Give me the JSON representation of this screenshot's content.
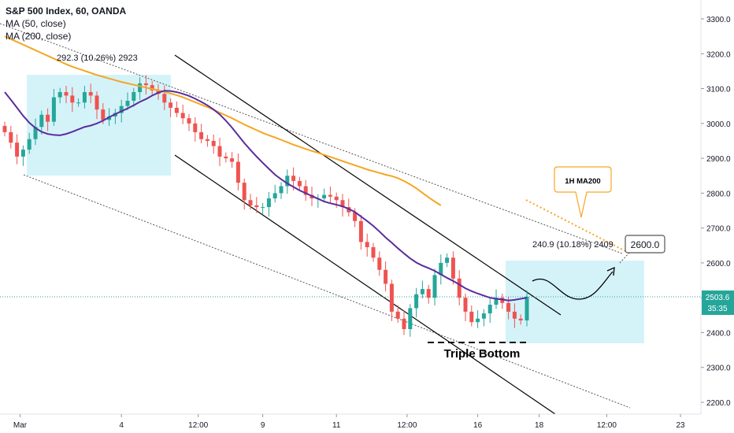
{
  "legend": {
    "symbol": "S&P 500 Index, 60, OANDA",
    "ma50": "MA (50, close)",
    "ma200": "MA (200, close)"
  },
  "colors": {
    "up": "#26a69a",
    "down": "#ef5350",
    "ma50": "#5b2c9e",
    "ma200": "#f5a623",
    "box": "#b7ebf5",
    "price_line": "#26a69a",
    "channel": "#000000",
    "callout_border": "#f5a623"
  },
  "annotations": {
    "measure_1": "292.3 (10.26%) 2923",
    "measure_2": "240.9 (10.18%) 2409",
    "callout_ma": "1H MA200",
    "target": "2600.0",
    "pattern": "Triple Bottom"
  },
  "price_tag": {
    "price": "2503.6",
    "timer": "35:35"
  },
  "chart_data": {
    "type": "line",
    "title": "S&P 500 Index, 60, OANDA",
    "xlabel": "",
    "ylabel": "",
    "ylim": [
      2150,
      3360
    ],
    "grid": false,
    "y_ticks": [
      "3300.0",
      "3200.0",
      "3100.0",
      "3000.0",
      "2900.0",
      "2800.0",
      "2700.0",
      "2600.0",
      "2500.0",
      "2400.0",
      "2300.0",
      "2200.0"
    ],
    "y_tick_values": [
      3300,
      3200,
      3100,
      3000,
      2900,
      2800,
      2700,
      2600,
      2500,
      2400,
      2300,
      2200
    ],
    "x_ticks": [
      "Mar",
      "4",
      "12:00",
      "9",
      "11",
      "12:00",
      "16",
      "18",
      "12:00",
      "23"
    ],
    "x_tick_index": [
      2.5,
      19,
      31.5,
      42,
      54,
      65.5,
      77,
      87,
      98,
      110
    ],
    "series": [
      {
        "name": "S&P 500 Index",
        "kind": "close",
        "values": [
          2975,
          2945,
          2905,
          2925,
          2955,
          2990,
          3025,
          3005,
          3075,
          3090,
          3080,
          3060,
          3060,
          3090,
          3080,
          3040,
          3010,
          3020,
          3030,
          3050,
          3065,
          3090,
          3115,
          3110,
          3095,
          3085,
          3060,
          3045,
          3030,
          3015,
          3000,
          2975,
          2955,
          2950,
          2935,
          2905,
          2900,
          2890,
          2830,
          2780,
          2765,
          2760,
          2760,
          2785,
          2800,
          2820,
          2850,
          2835,
          2820,
          2795,
          2785,
          2785,
          2795,
          2790,
          2780,
          2760,
          2745,
          2720,
          2660,
          2645,
          2615,
          2580,
          2540,
          2460,
          2440,
          2410,
          2470,
          2510,
          2525,
          2500,
          2565,
          2600,
          2615,
          2555,
          2500,
          2460,
          2430,
          2440,
          2455,
          2480,
          2500,
          2485,
          2460,
          2440,
          2435,
          2503
        ]
      },
      {
        "name": "MA (50, close)",
        "kind": "ma",
        "values": [
          3090,
          3068,
          3045,
          3022,
          3002,
          2987,
          2976,
          2970,
          2967,
          2966,
          2970,
          2976,
          2983,
          2990,
          2994,
          3000,
          3008,
          3018,
          3027,
          3035,
          3043,
          3052,
          3062,
          3070,
          3080,
          3088,
          3094,
          3093,
          3090,
          3085,
          3079,
          3071,
          3062,
          3052,
          3040,
          3026,
          3008,
          2988,
          2966,
          2944,
          2924,
          2905,
          2887,
          2870,
          2853,
          2840,
          2828,
          2818,
          2808,
          2800,
          2792,
          2784,
          2776,
          2771,
          2767,
          2762,
          2755,
          2746,
          2733,
          2720,
          2706,
          2690,
          2673,
          2658,
          2642,
          2627,
          2613,
          2601,
          2592,
          2585,
          2577,
          2567,
          2557,
          2548,
          2538,
          2527,
          2519,
          2512,
          2506,
          2500,
          2497,
          2495,
          2492,
          2494,
          2497,
          2500
        ]
      },
      {
        "name": "MA (200, close)",
        "kind": "ma",
        "values": [
          3250,
          3242,
          3234,
          3226,
          3218,
          3210,
          3202,
          3194,
          3186,
          3178,
          3170,
          3163,
          3157,
          3151,
          3145,
          3139,
          3134,
          3129,
          3124,
          3119,
          3115,
          3111,
          3107,
          3103,
          3099,
          3095,
          3091,
          3086,
          3081,
          3075,
          3068,
          3061,
          3054,
          3047,
          3039,
          3031,
          3023,
          3015,
          3006,
          2997,
          2989,
          2981,
          2973,
          2966,
          2960,
          2953,
          2946,
          2939,
          2933,
          2927,
          2921,
          2916,
          2910,
          2904,
          2898,
          2892,
          2886,
          2880,
          2874,
          2868,
          2863,
          2858,
          2853,
          2849,
          2843,
          2835,
          2825,
          2814,
          2801,
          2788,
          2776,
          2765
        ]
      }
    ]
  }
}
